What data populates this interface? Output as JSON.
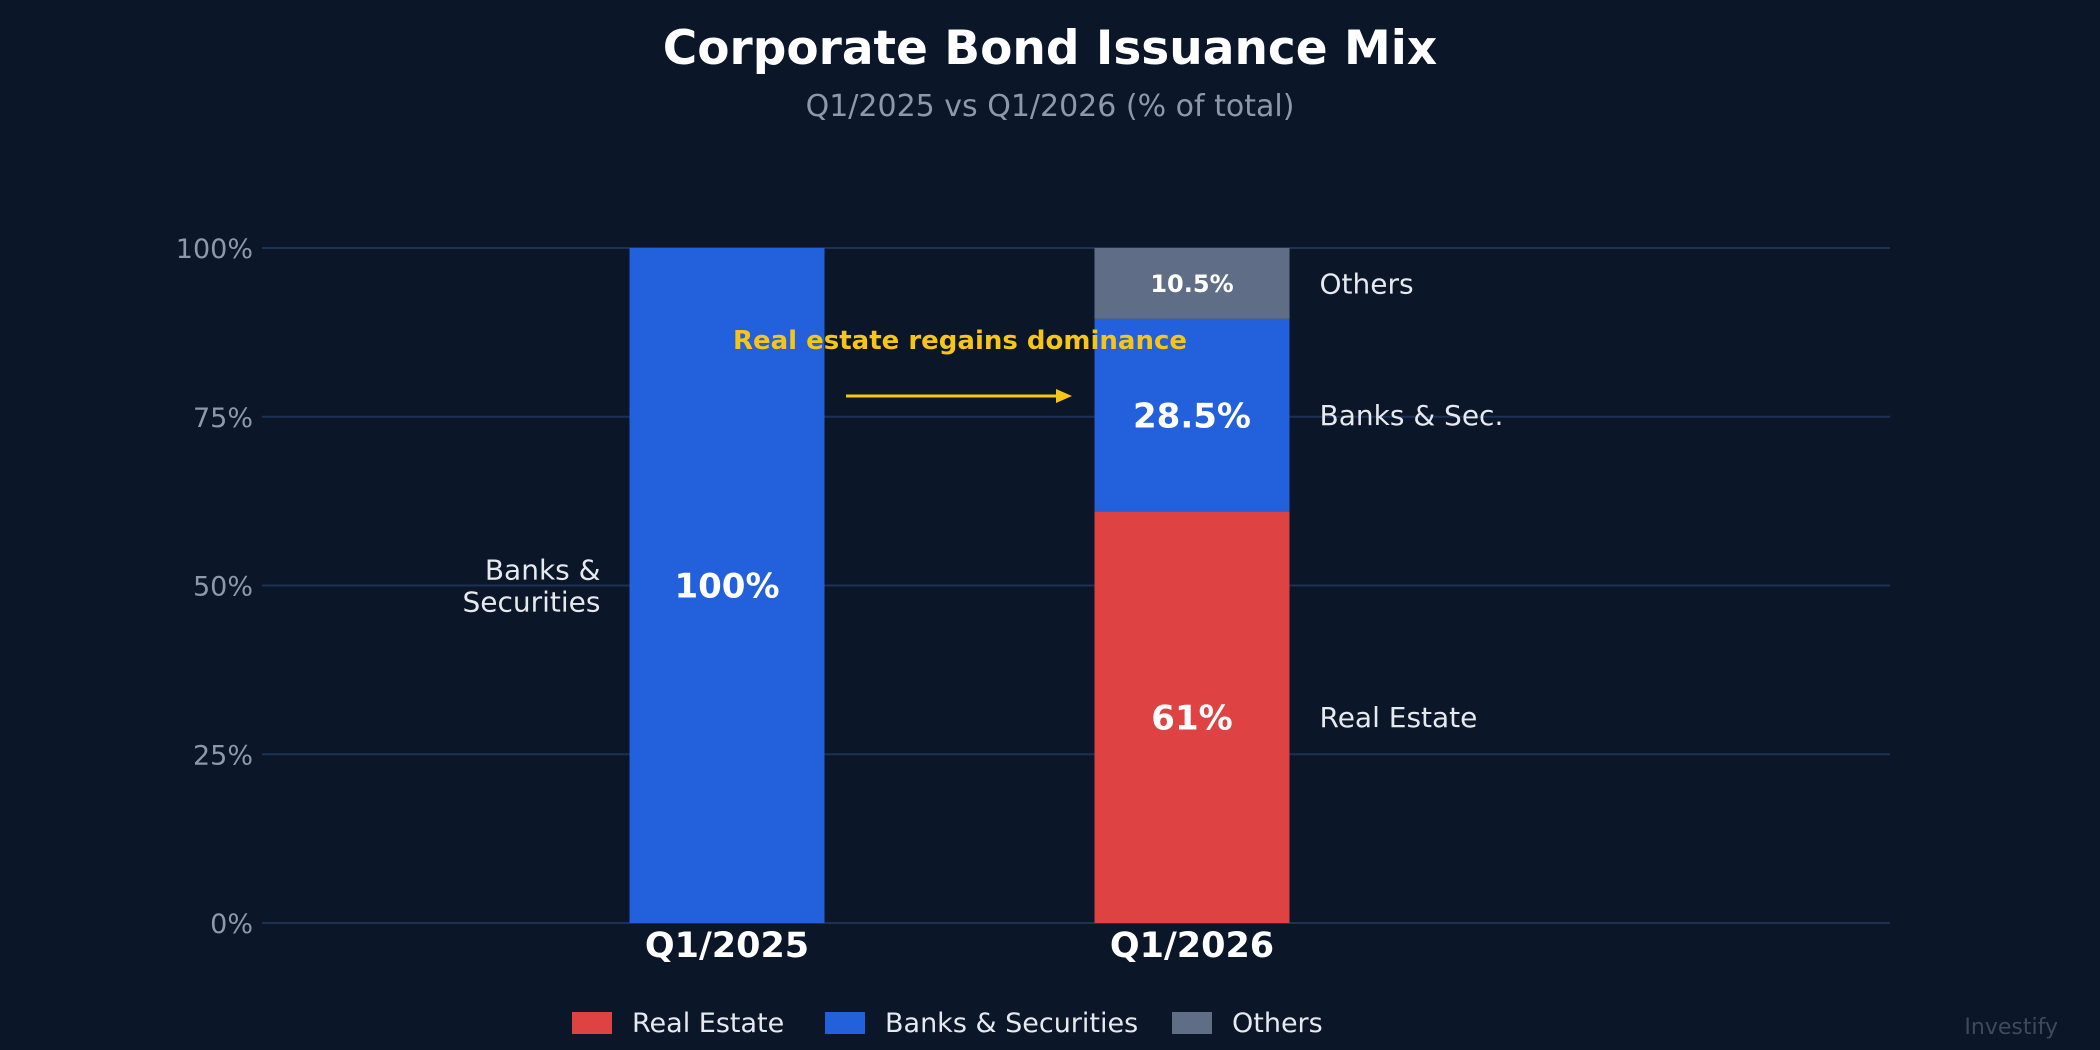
{
  "chart_data": {
    "type": "bar",
    "stacked": true,
    "title": "Corporate Bond Issuance Mix",
    "subtitle": "Q1/2025 vs Q1/2026 (% of total)",
    "categories": [
      "Q1/2025",
      "Q1/2026"
    ],
    "series": [
      {
        "name": "Real Estate",
        "color": "#de4242",
        "values": [
          0,
          61
        ],
        "labels": [
          "",
          "61%"
        ]
      },
      {
        "name": "Banks & Securities",
        "color": "#2360dc",
        "values": [
          100,
          28.5
        ],
        "labels": [
          "100%",
          "28.5%"
        ]
      },
      {
        "name": "Others",
        "color": "#5f6e86",
        "values": [
          0,
          10.5
        ],
        "labels": [
          "",
          "10.5%"
        ]
      }
    ],
    "ylim": [
      0,
      100
    ],
    "yticks": [
      0,
      25,
      50,
      75,
      100
    ],
    "ytick_labels": [
      "0%",
      "25%",
      "50%",
      "75%",
      "100%"
    ],
    "grid": true,
    "legend_position": "bottom",
    "side_labels": {
      "Q1/2025": [
        {
          "series": "Banks & Securities",
          "lines": [
            "Banks &",
            "Securities"
          ]
        }
      ],
      "Q1/2026": [
        {
          "series": "Real Estate",
          "lines": [
            "Real Estate"
          ]
        },
        {
          "series": "Banks & Securities",
          "lines": [
            "Banks & Sec."
          ]
        },
        {
          "series": "Others",
          "lines": [
            "Others"
          ]
        }
      ]
    },
    "annotation": {
      "text": "Real estate regains dominance",
      "color": "#f5c518"
    }
  },
  "watermark": "Investify"
}
